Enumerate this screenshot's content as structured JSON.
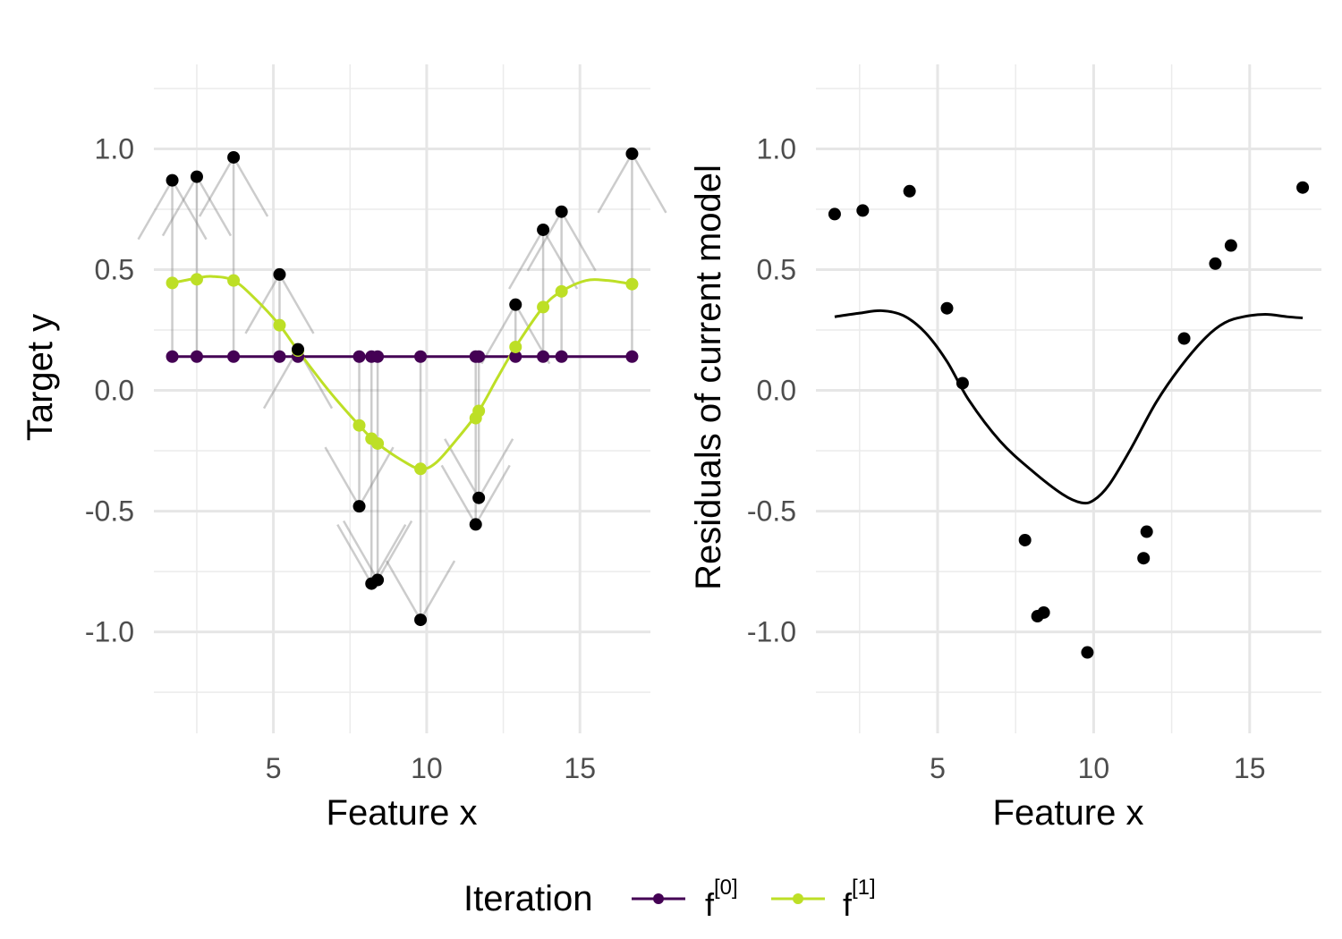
{
  "chart_data": [
    {
      "type": "line",
      "xlabel": "Feature x",
      "ylabel": "Target y",
      "xlim": [
        1.1,
        17.3
      ],
      "ylim": [
        -1.42,
        1.35
      ],
      "xticks": [
        5,
        10,
        15
      ],
      "xtick_labels": [
        "5",
        "10",
        "15"
      ],
      "yticks": [
        -1.0,
        -0.5,
        0.0,
        0.5,
        1.0
      ],
      "ytick_labels": [
        "-1.0",
        "-0.5",
        "0.0",
        "0.5",
        "1.0"
      ],
      "grid": true,
      "observed_points": {
        "x": [
          1.7,
          2.5,
          3.7,
          5.2,
          5.8,
          7.8,
          8.2,
          8.4,
          9.8,
          11.6,
          11.7,
          12.9,
          13.8,
          14.4,
          16.7
        ],
        "y": [
          0.87,
          0.885,
          0.965,
          0.48,
          0.17,
          -0.48,
          -0.8,
          -0.785,
          -0.95,
          -0.555,
          -0.445,
          0.355,
          0.665,
          0.74,
          0.98
        ]
      },
      "series": [
        {
          "name": "f[0]",
          "color": "#440154",
          "x": [
            1.7,
            2.5,
            3.7,
            5.2,
            5.8,
            7.8,
            8.2,
            8.4,
            9.8,
            11.6,
            11.7,
            12.9,
            13.8,
            14.4,
            16.7
          ],
          "y": [
            0.14,
            0.14,
            0.14,
            0.14,
            0.14,
            0.14,
            0.14,
            0.14,
            0.14,
            0.14,
            0.14,
            0.14,
            0.14,
            0.14,
            0.14
          ]
        },
        {
          "name": "f[1]",
          "color": "#bddf26",
          "x": [
            1.7,
            2.5,
            3.7,
            5.2,
            5.8,
            7.8,
            8.2,
            8.4,
            9.8,
            11.6,
            11.7,
            12.9,
            13.8,
            14.4,
            16.7
          ],
          "y": [
            0.445,
            0.46,
            0.455,
            0.27,
            0.165,
            -0.145,
            -0.2,
            -0.22,
            -0.325,
            -0.115,
            -0.085,
            0.18,
            0.345,
            0.41,
            0.44
          ]
        }
      ],
      "smooth_curve_f1": {
        "x": [
          1.7,
          2.5,
          3.0,
          3.7,
          4.4,
          5.2,
          5.8,
          6.8,
          7.8,
          8.4,
          9.2,
          9.8,
          10.3,
          11.0,
          11.7,
          12.3,
          12.9,
          13.8,
          14.4,
          15.2,
          15.9,
          16.7
        ],
        "y": [
          0.445,
          0.465,
          0.472,
          0.455,
          0.38,
          0.27,
          0.165,
          0.0,
          -0.145,
          -0.22,
          -0.29,
          -0.325,
          -0.3,
          -0.2,
          -0.085,
          0.05,
          0.18,
          0.345,
          0.41,
          0.455,
          0.455,
          0.44
        ]
      }
    },
    {
      "type": "scatter",
      "xlabel": "Feature x",
      "ylabel": "Residuals of current model",
      "xlim": [
        1.1,
        17.3
      ],
      "ylim": [
        -1.42,
        1.35
      ],
      "xticks": [
        5,
        10,
        15
      ],
      "xtick_labels": [
        "5",
        "10",
        "15"
      ],
      "yticks": [
        -1.0,
        -0.5,
        0.0,
        0.5,
        1.0
      ],
      "ytick_labels": [
        "-1.0",
        "-0.5",
        "0.0",
        "0.5",
        "1.0"
      ],
      "grid": true,
      "points": {
        "x": [
          1.7,
          2.6,
          4.1,
          5.3,
          5.8,
          7.8,
          8.2,
          8.4,
          9.8,
          11.6,
          11.7,
          12.9,
          13.9,
          14.4,
          16.7
        ],
        "y": [
          0.73,
          0.745,
          0.825,
          0.34,
          0.03,
          -0.62,
          -0.935,
          -0.92,
          -1.085,
          -0.695,
          -0.585,
          0.215,
          0.525,
          0.6,
          0.84
        ]
      },
      "fitted_curve": {
        "x": [
          1.7,
          2.5,
          3.2,
          3.9,
          4.6,
          5.3,
          6.0,
          7.0,
          8.0,
          9.0,
          9.6,
          10.0,
          10.5,
          11.2,
          12.0,
          12.8,
          13.6,
          14.2,
          14.8,
          15.5,
          16.2,
          16.7
        ],
        "y": [
          0.305,
          0.32,
          0.33,
          0.31,
          0.24,
          0.12,
          -0.04,
          -0.21,
          -0.33,
          -0.43,
          -0.465,
          -0.455,
          -0.39,
          -0.24,
          -0.05,
          0.1,
          0.22,
          0.28,
          0.305,
          0.315,
          0.305,
          0.3
        ]
      }
    }
  ],
  "legend": {
    "title": "Iteration",
    "position": "bottom",
    "items": [
      {
        "base": "f",
        "sup": "[0]",
        "color": "#440154"
      },
      {
        "base": "f",
        "sup": "[1]",
        "color": "#bddf26"
      }
    ]
  }
}
